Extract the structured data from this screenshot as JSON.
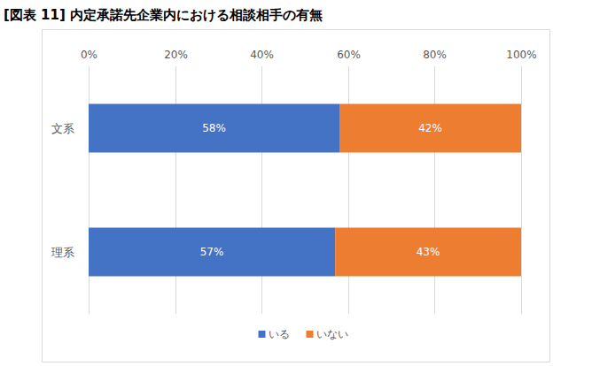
{
  "chart_data": {
    "type": "bar",
    "orientation": "horizontal",
    "stacked": true,
    "title": "[図表 11] 内定承諾先企業内における相談相手の有無",
    "categories": [
      "文系",
      "理系"
    ],
    "series": [
      {
        "name": "いる",
        "color": "#4472c4",
        "values": [
          58,
          57
        ],
        "value_labels": [
          "58%",
          "57%"
        ]
      },
      {
        "name": "いない",
        "color": "#ed7d31",
        "values": [
          42,
          43
        ],
        "value_labels": [
          "42%",
          "43%"
        ]
      }
    ],
    "xlim": [
      0,
      100
    ],
    "xticks": [
      {
        "value": 0,
        "label": "0%"
      },
      {
        "value": 20,
        "label": "20%"
      },
      {
        "value": 40,
        "label": "40%"
      },
      {
        "value": 60,
        "label": "60%"
      },
      {
        "value": 80,
        "label": "80%"
      },
      {
        "value": 100,
        "label": "100%"
      }
    ],
    "grid": true,
    "legend": "bottom",
    "data_labels": true
  }
}
